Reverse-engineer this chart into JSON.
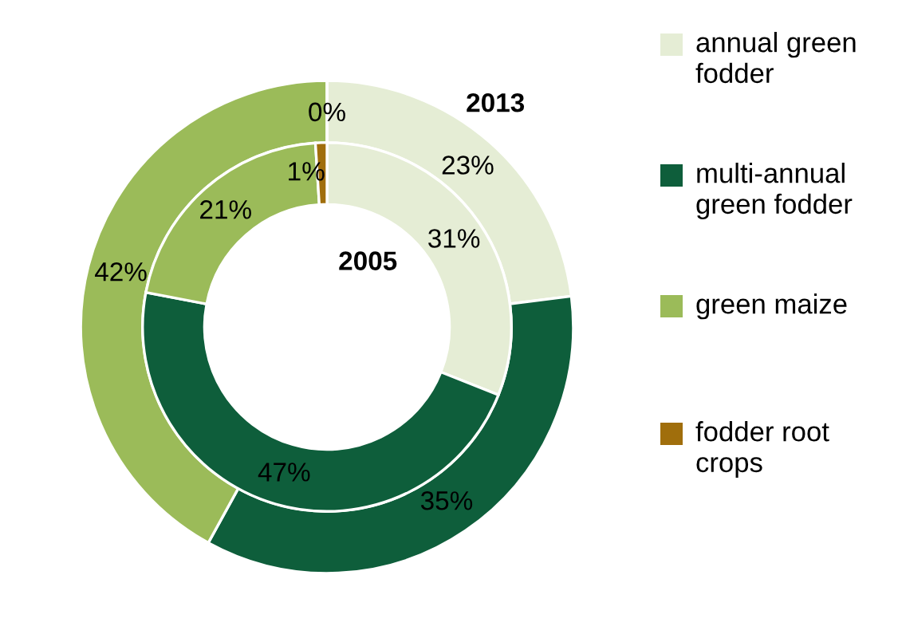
{
  "chart_data": {
    "type": "donut",
    "categories": [
      "annual green fodder",
      "multi-annual green fodder",
      "green maize",
      "fodder root crops"
    ],
    "colors": [
      "#e5edd5",
      "#0e5e3b",
      "#9bbb59",
      "#a06e0c"
    ],
    "series": [
      {
        "name": "2013",
        "values": [
          23,
          35,
          42,
          0
        ],
        "value_labels": [
          "23%",
          "35%",
          "42%",
          "0%"
        ]
      },
      {
        "name": "2005",
        "values": [
          31,
          47,
          21,
          1
        ],
        "value_labels": [
          "31%",
          "47%",
          "21%",
          "1%"
        ]
      }
    ],
    "data_labels": true,
    "legend": "right"
  }
}
